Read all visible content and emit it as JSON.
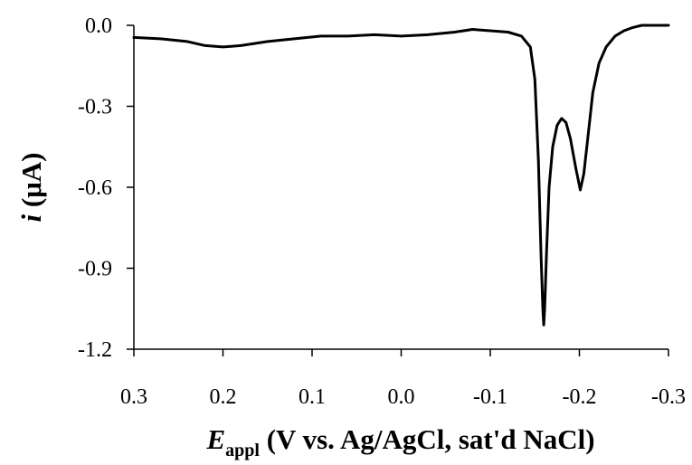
{
  "chart_data": {
    "type": "line",
    "xlabel": {
      "symbol": "E",
      "subscript": "appl",
      "rest": " (V vs. Ag/AgCl, sat'd NaCl)"
    },
    "ylabel": {
      "symbol": "i",
      "rest": " (μA)"
    },
    "xlim": [
      0.3,
      -0.3
    ],
    "ylim": [
      -1.2,
      0.0
    ],
    "x_reversed": true,
    "xticks": [
      0.3,
      0.2,
      0.1,
      0.0,
      -0.1,
      -0.2,
      -0.3
    ],
    "xtick_labels": [
      "0.3",
      "0.2",
      "0.1",
      "0.0",
      "-0.1",
      "-0.2",
      "-0.3"
    ],
    "yticks": [
      0.0,
      -0.3,
      -0.6,
      -0.9,
      -1.2
    ],
    "ytick_labels": [
      "0.0",
      "-0.3",
      "-0.6",
      "-0.9",
      "-1.2"
    ],
    "grid": false,
    "series": [
      {
        "color": "#000000",
        "points": [
          [
            0.3,
            -0.045
          ],
          [
            0.27,
            -0.05
          ],
          [
            0.24,
            -0.06
          ],
          [
            0.22,
            -0.075
          ],
          [
            0.2,
            -0.08
          ],
          [
            0.18,
            -0.075
          ],
          [
            0.15,
            -0.06
          ],
          [
            0.12,
            -0.05
          ],
          [
            0.09,
            -0.04
          ],
          [
            0.06,
            -0.04
          ],
          [
            0.03,
            -0.035
          ],
          [
            0.0,
            -0.04
          ],
          [
            -0.03,
            -0.035
          ],
          [
            -0.06,
            -0.025
          ],
          [
            -0.08,
            -0.015
          ],
          [
            -0.1,
            -0.02
          ],
          [
            -0.12,
            -0.025
          ],
          [
            -0.135,
            -0.04
          ],
          [
            -0.145,
            -0.08
          ],
          [
            -0.15,
            -0.2
          ],
          [
            -0.154,
            -0.5
          ],
          [
            -0.157,
            -0.85
          ],
          [
            -0.159,
            -1.05
          ],
          [
            -0.16,
            -1.11
          ],
          [
            -0.161,
            -1.05
          ],
          [
            -0.163,
            -0.85
          ],
          [
            -0.166,
            -0.6
          ],
          [
            -0.17,
            -0.45
          ],
          [
            -0.175,
            -0.37
          ],
          [
            -0.18,
            -0.345
          ],
          [
            -0.185,
            -0.36
          ],
          [
            -0.19,
            -0.42
          ],
          [
            -0.196,
            -0.53
          ],
          [
            -0.201,
            -0.61
          ],
          [
            -0.205,
            -0.55
          ],
          [
            -0.21,
            -0.4
          ],
          [
            -0.215,
            -0.25
          ],
          [
            -0.222,
            -0.14
          ],
          [
            -0.23,
            -0.08
          ],
          [
            -0.24,
            -0.04
          ],
          [
            -0.25,
            -0.02
          ],
          [
            -0.26,
            -0.008
          ],
          [
            -0.27,
            0.0
          ],
          [
            -0.3,
            0.0
          ]
        ]
      }
    ]
  }
}
